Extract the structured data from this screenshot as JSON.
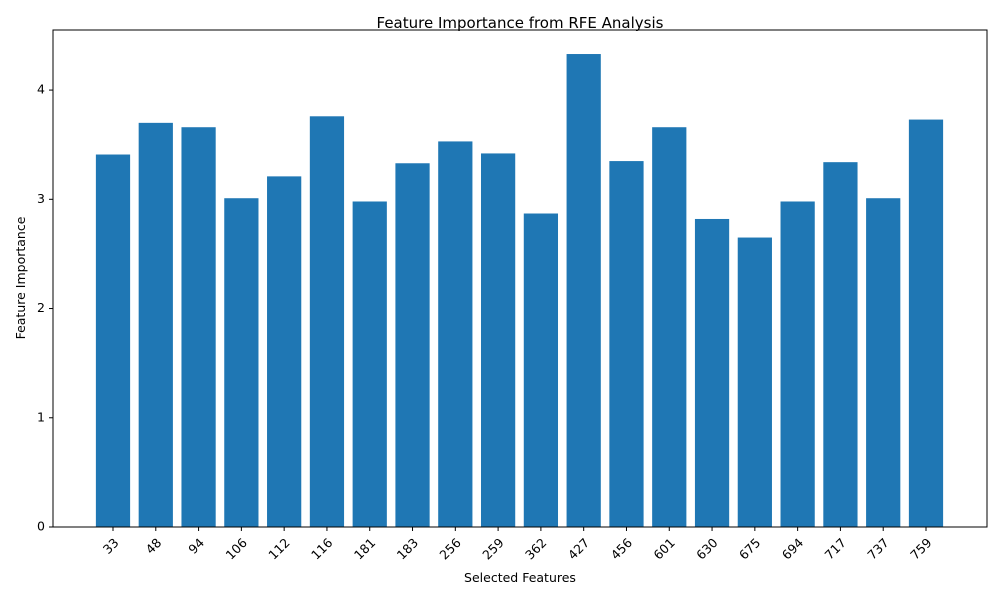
{
  "chart_data": {
    "type": "bar",
    "title": "Feature Importance from RFE Analysis",
    "xlabel": "Selected Features",
    "ylabel": "Feature Importance",
    "categories": [
      "33",
      "48",
      "94",
      "106",
      "112",
      "116",
      "181",
      "183",
      "256",
      "259",
      "362",
      "427",
      "456",
      "601",
      "630",
      "675",
      "694",
      "717",
      "737",
      "759"
    ],
    "values": [
      3.41,
      3.7,
      3.66,
      3.01,
      3.21,
      3.76,
      2.98,
      3.33,
      3.53,
      3.42,
      2.87,
      4.33,
      3.35,
      3.66,
      2.82,
      2.65,
      2.98,
      3.34,
      3.01,
      3.73
    ],
    "ylim": [
      0,
      4.55
    ],
    "yticks": [
      "0",
      "1",
      "2",
      "3",
      "4"
    ],
    "bar_color": "#1f77b4",
    "grid": false,
    "legend": "none"
  }
}
